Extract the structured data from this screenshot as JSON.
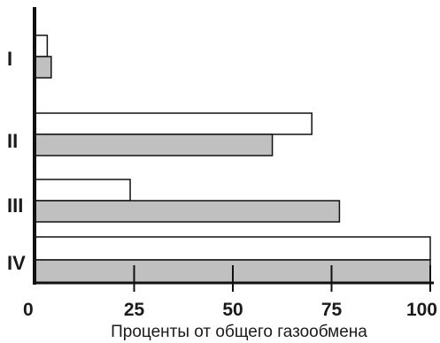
{
  "chart_data": {
    "type": "bar",
    "orientation": "horizontal",
    "title": "",
    "xlabel": "Проценты от общего газообмена",
    "ylabel": "",
    "xlim": [
      0,
      100
    ],
    "xticks": [
      0,
      25,
      50,
      75,
      100
    ],
    "categories": [
      "I",
      "II",
      "III",
      "IV"
    ],
    "series": [
      {
        "color": "#ffffff",
        "values": [
          3,
          70,
          24,
          100
        ]
      },
      {
        "color": "#c0c0c0",
        "values": [
          4,
          60,
          77,
          100
        ]
      }
    ],
    "grid": false,
    "legend": "none"
  }
}
